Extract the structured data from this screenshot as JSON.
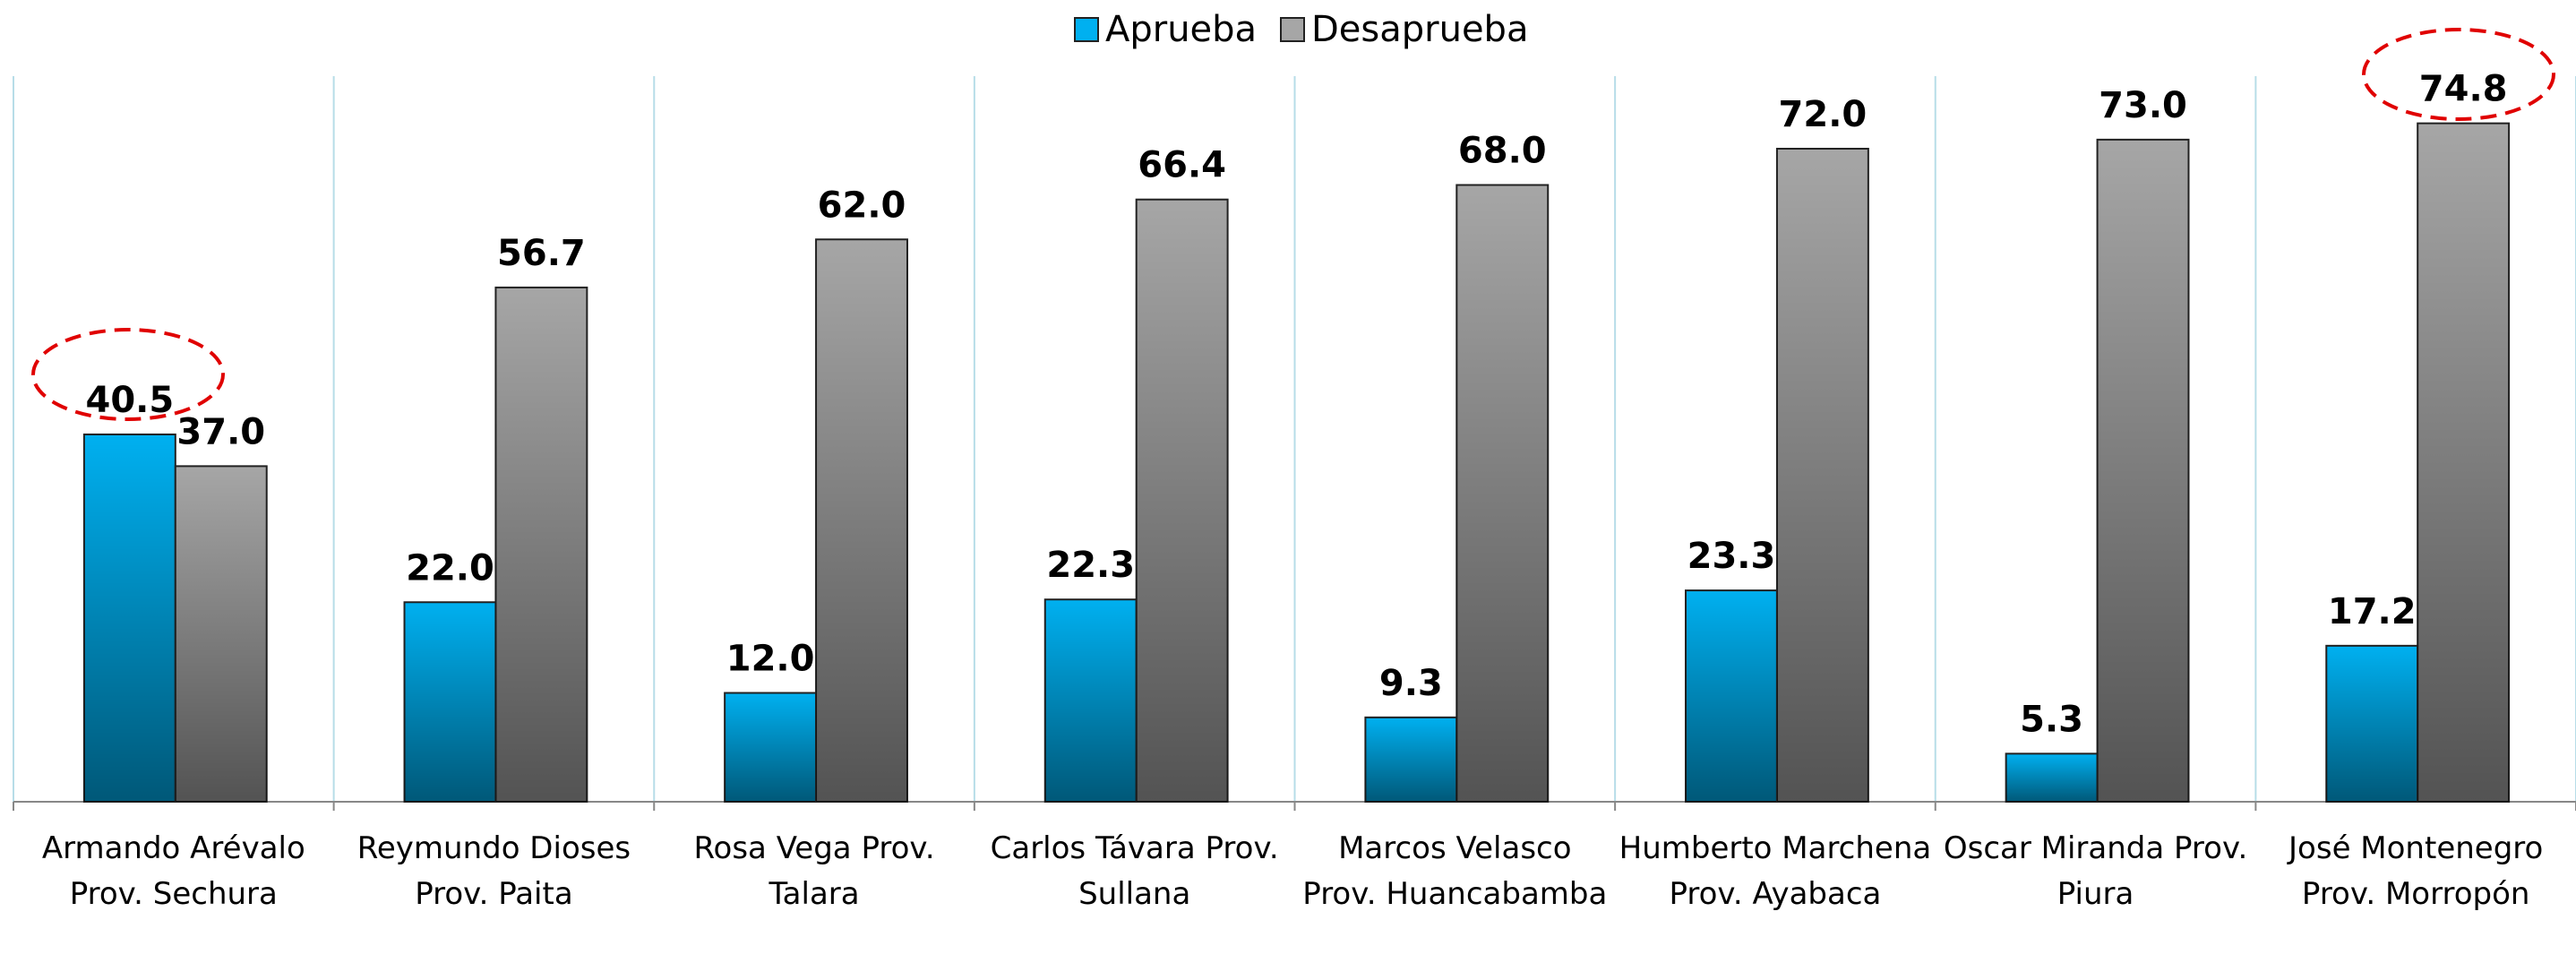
{
  "chart_data": {
    "type": "bar",
    "categories": [
      "Armando Arévalo Prov. Sechura",
      "Reymundo Dioses Prov. Paita",
      "Rosa Vega Prov. Talara",
      "Carlos Távara   Prov. Sullana",
      "Marcos Velasco Prov. Huancabamba",
      "Humberto Marchena Prov. Ayabaca",
      "Oscar Miranda Prov. Piura",
      "José Montenegro Prov. Morropón"
    ],
    "series": [
      {
        "name": "Aprueba",
        "color": "#00b0f0",
        "values": [
          40.5,
          22,
          12,
          22.3,
          9.3,
          23.3,
          5.3,
          17.2
        ],
        "value_labels": [
          "40.5",
          "22.0",
          "12.0",
          "22.3",
          "9.3",
          "23.3",
          "5.3",
          "17.2"
        ]
      },
      {
        "name": "Desaprueba",
        "color": "#a6a6a6",
        "values": [
          37,
          56.7,
          62,
          66.4,
          68,
          72,
          73,
          74.8
        ],
        "value_labels": [
          "37.0",
          "56.7",
          "62.0",
          "66.4",
          "68.0",
          "72.0",
          "73.0",
          "74.8"
        ]
      }
    ],
    "ylim": [
      0,
      80
    ],
    "legend": "top"
  }
}
